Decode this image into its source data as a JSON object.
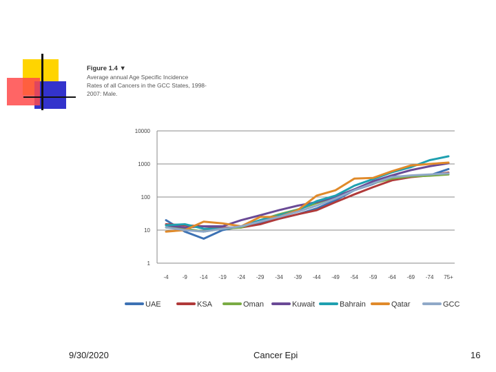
{
  "slide": {
    "date": "9/30/2020",
    "footer_title": "Cancer Epi",
    "page_number": "16"
  },
  "caption": {
    "figure_label": "Figure 1.4 ▼",
    "lines": [
      "Average annual Age Specific Incidence",
      "Rates of all Cancers in the GCC States, 1998-",
      "2007: Male."
    ]
  },
  "colors": {
    "deco_yellow": "#ffd400",
    "deco_red": "#ff4a4a",
    "deco_blue": "#3333cc"
  },
  "chart_data": {
    "type": "line",
    "title": "Average annual Age Specific Incidence Rates of all Cancers in the GCC States, 1998-2007: Male.",
    "xlabel": "",
    "ylabel": "",
    "yscale": "log",
    "ylim": [
      1,
      10000
    ],
    "y_ticks": [
      1,
      10,
      100,
      1000,
      10000
    ],
    "y_tick_labels": [
      "1",
      "10",
      "100",
      "1000",
      "10000"
    ],
    "grid": "horizontal",
    "legend_position": "bottom",
    "categories": [
      "-4",
      "-9",
      "-14",
      "-19",
      "-24",
      "-29",
      "-34",
      "-39",
      "-44",
      "-49",
      "-54",
      "-59",
      "-64",
      "-69",
      "-74",
      "75+"
    ],
    "series": [
      {
        "name": "UAE",
        "color": "#3d72b4",
        "values": [
          20,
          9,
          5.5,
          10,
          13,
          16,
          22,
          30,
          45,
          80,
          160,
          250,
          420,
          420,
          450,
          700
        ]
      },
      {
        "name": "KSA",
        "color": "#b03a3a",
        "values": [
          15,
          14,
          13,
          12,
          12,
          15,
          22,
          30,
          40,
          70,
          120,
          200,
          320,
          400,
          450,
          550
        ]
      },
      {
        "name": "Oman",
        "color": "#7aab44",
        "values": [
          12,
          11,
          9,
          11,
          12,
          20,
          30,
          42,
          65,
          100,
          170,
          260,
          360,
          420,
          440,
          480
        ]
      },
      {
        "name": "Kuwait",
        "color": "#6a4a96",
        "values": [
          14,
          12,
          13,
          13,
          20,
          28,
          40,
          55,
          70,
          100,
          170,
          300,
          450,
          650,
          850,
          1050
        ]
      },
      {
        "name": "Bahrain",
        "color": "#1fa0b0",
        "values": [
          14,
          15,
          11,
          11,
          13,
          20,
          28,
          40,
          75,
          110,
          220,
          350,
          560,
          800,
          1300,
          1700
        ]
      },
      {
        "name": "Qatar",
        "color": "#e08a2a",
        "values": [
          9,
          10,
          18,
          16,
          13,
          25,
          25,
          40,
          110,
          160,
          360,
          380,
          600,
          900,
          1000,
          1100
        ]
      },
      {
        "name": "GCC",
        "color": "#8fa8c8",
        "values": [
          12,
          10,
          9,
          11,
          13,
          18,
          25,
          36,
          55,
          90,
          160,
          260,
          400,
          450,
          480,
          520
        ]
      }
    ]
  }
}
